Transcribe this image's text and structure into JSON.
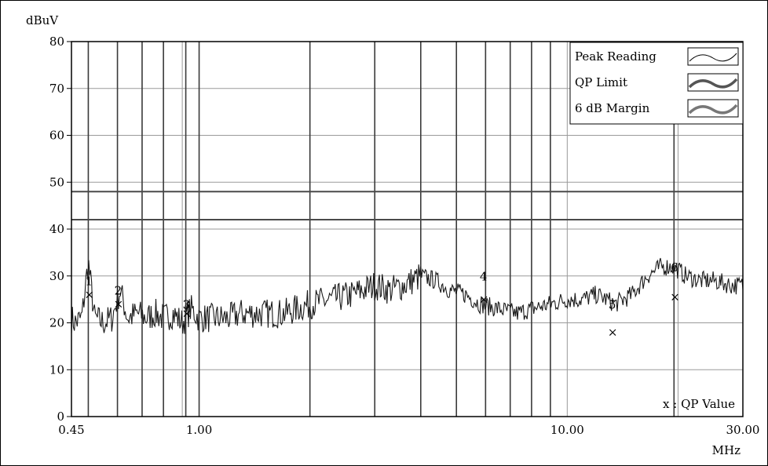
{
  "chart_data": {
    "type": "line",
    "ylabel": "dBuV",
    "xlabel": "MHz",
    "x_scale": "log",
    "xlim": [
      0.45,
      30.0
    ],
    "ylim": [
      0,
      80
    ],
    "x_tick_labels": [
      "0.45",
      "1.00",
      "10.00",
      "30.00"
    ],
    "y_ticks": [
      0,
      10,
      20,
      30,
      40,
      50,
      60,
      70,
      80
    ],
    "grid": true,
    "legend_position": "top-right",
    "legend": [
      "Peak Reading",
      "QP Limit",
      "6 dB Margin"
    ],
    "limit_lines": [
      {
        "name": "QP Limit",
        "value": 48
      },
      {
        "name": "6 dB Margin",
        "value": 42
      }
    ],
    "series": [
      {
        "name": "Peak Reading",
        "x": [
          0.45,
          0.46,
          0.48,
          0.5,
          0.52,
          0.55,
          0.58,
          0.61,
          0.64,
          0.68,
          0.72,
          0.76,
          0.8,
          0.85,
          0.9,
          0.95,
          1.0,
          1.1,
          1.2,
          1.3,
          1.5,
          1.7,
          2.0,
          2.3,
          2.6,
          3.0,
          3.3,
          3.6,
          4.0,
          4.4,
          4.8,
          5.3,
          5.8,
          6.5,
          7.3,
          8.0,
          9.0,
          10.0,
          11.0,
          12.0,
          12.8,
          13.5,
          15.0,
          16.5,
          18.0,
          19.5,
          21.0,
          23.0,
          25.0,
          28.0,
          30.0
        ],
        "y": [
          21,
          20,
          21,
          33,
          21,
          20,
          21,
          27,
          21,
          22,
          21,
          22,
          21,
          22,
          20,
          23,
          21,
          21,
          21,
          22,
          22,
          22,
          24,
          25,
          26,
          28,
          27,
          28,
          30,
          29,
          27,
          26,
          24,
          23,
          22,
          23,
          24,
          25,
          25,
          26,
          25,
          24,
          26,
          30,
          32,
          32,
          30,
          29,
          29,
          28,
          28
        ]
      }
    ],
    "markers": [
      {
        "label": "1",
        "x": 0.5,
        "y": 27
      },
      {
        "label": "2",
        "x": 0.6,
        "y": 25
      },
      {
        "label": "3",
        "x": 0.92,
        "y": 22
      },
      {
        "label": "4",
        "x": 5.9,
        "y": 28
      },
      {
        "label": "5",
        "x": 13.2,
        "y": 22
      },
      {
        "label": "6",
        "x": 19.5,
        "y": 30
      }
    ],
    "qp_values": [
      {
        "x": 0.5,
        "y": 26
      },
      {
        "x": 0.6,
        "y": 24
      },
      {
        "x": 0.92,
        "y": 22
      },
      {
        "x": 5.9,
        "y": 25
      },
      {
        "x": 13.2,
        "y": 18
      },
      {
        "x": 19.5,
        "y": 25.5
      }
    ],
    "qp_note": "x : QP Value"
  }
}
